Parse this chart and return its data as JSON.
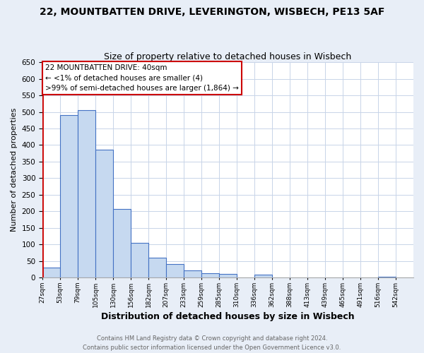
{
  "title": "22, MOUNTBATTEN DRIVE, LEVERINGTON, WISBECH, PE13 5AF",
  "subtitle": "Size of property relative to detached houses in Wisbech",
  "xlabel": "Distribution of detached houses by size in Wisbech",
  "ylabel": "Number of detached properties",
  "bin_labels": [
    "27sqm",
    "53sqm",
    "79sqm",
    "105sqm",
    "130sqm",
    "156sqm",
    "182sqm",
    "207sqm",
    "233sqm",
    "259sqm",
    "285sqm",
    "310sqm",
    "336sqm",
    "362sqm",
    "388sqm",
    "413sqm",
    "439sqm",
    "465sqm",
    "491sqm",
    "516sqm",
    "542sqm"
  ],
  "bin_values": [
    30,
    490,
    505,
    385,
    208,
    105,
    60,
    40,
    22,
    14,
    11,
    0,
    8,
    0,
    0,
    0,
    0,
    0,
    0,
    3,
    0
  ],
  "bar_color": "#c6d9f0",
  "bar_edge_color": "#4472c4",
  "ylim": [
    0,
    650
  ],
  "yticks": [
    0,
    50,
    100,
    150,
    200,
    250,
    300,
    350,
    400,
    450,
    500,
    550,
    600,
    650
  ],
  "annotation_line1": "22 MOUNTBATTEN DRIVE: 40sqm",
  "annotation_line2": "← <1% of detached houses are smaller (4)",
  "annotation_line3": ">99% of semi-detached houses are larger (1,864) →",
  "annotation_box_color": "#ffffff",
  "annotation_box_edge_color": "#cc0000",
  "footer_line1": "Contains HM Land Registry data © Crown copyright and database right 2024.",
  "footer_line2": "Contains public sector information licensed under the Open Government Licence v3.0.",
  "bg_color": "#e8eef7",
  "plot_bg_color": "#ffffff",
  "grid_color": "#c8d4e8"
}
